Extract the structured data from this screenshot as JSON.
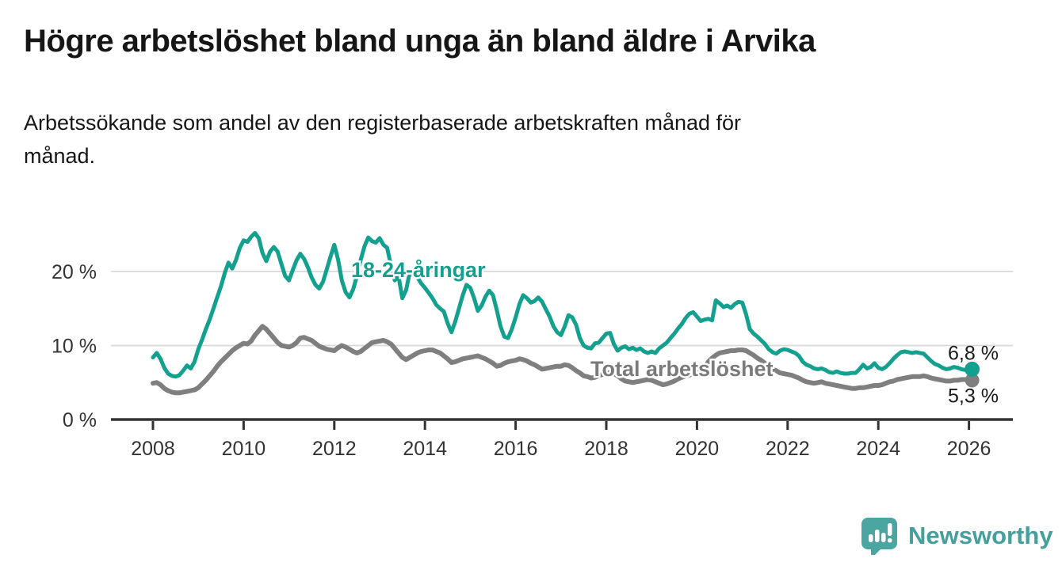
{
  "header": {
    "title": "Högre arbetslöshet bland unga än bland äldre i Arvika",
    "subtitle_line1": "Arbetssökande som andel av den registerbaserade arbetskraften månad för",
    "subtitle_line2": "månad."
  },
  "footer": {
    "brand": "Newsworthy"
  },
  "colors": {
    "accent_teal": "#13a08f",
    "logo_teal": "#4ba5a1",
    "series_gray": "#7f7f7f",
    "grid_gray": "#d9d9d9",
    "axis_dark": "#333333",
    "text_dark": "#161616"
  },
  "chart_data": {
    "type": "line",
    "title": "Högre arbetslöshet bland unga än bland äldre i Arvika",
    "subtitle": "Arbetssökande som andel av den registerbaserade arbetskraften månad för månad.",
    "x_start_year": 2008,
    "points_per_year": 12,
    "x_axis": {
      "tick_values": [
        2008,
        2010,
        2012,
        2014,
        2016,
        2018,
        2020,
        2022,
        2024,
        2026
      ],
      "tick_labels": [
        "2008",
        "2010",
        "2012",
        "2014",
        "2016",
        "2018",
        "2020",
        "2022",
        "2024",
        "2026"
      ]
    },
    "y_axis": {
      "tick_values": [
        0,
        10,
        20
      ],
      "tick_labels": [
        "0 %",
        "10 %",
        "20 %"
      ],
      "min": 0,
      "max": 27,
      "grid": true
    },
    "legend_position": "inline-labels",
    "series": [
      {
        "name": "18-24-åringar",
        "color": "#13a08f",
        "end_label": "6,8 %",
        "end_value": 6.8,
        "values": [
          8.4,
          9.0,
          8.2,
          7.0,
          6.2,
          5.9,
          5.8,
          6.0,
          6.6,
          7.3,
          6.9,
          7.8,
          9.5,
          10.8,
          12.2,
          13.5,
          15.0,
          16.5,
          18.0,
          19.8,
          21.2,
          20.4,
          21.6,
          23.2,
          24.2,
          24.0,
          24.7,
          25.2,
          24.5,
          22.5,
          21.4,
          22.7,
          23.3,
          22.7,
          21.0,
          19.4,
          18.8,
          20.2,
          21.5,
          22.4,
          21.7,
          20.6,
          19.2,
          18.2,
          17.7,
          18.6,
          20.3,
          22.0,
          23.6,
          21.6,
          18.8,
          17.2,
          16.5,
          17.6,
          19.4,
          21.6,
          23.4,
          24.6,
          24.1,
          23.9,
          24.5,
          23.6,
          23.2,
          20.8,
          18.8,
          19.4,
          16.4,
          17.5,
          19.9,
          19.6,
          19.2,
          18.4,
          17.8,
          17.1,
          16.4,
          15.5,
          15.0,
          14.6,
          13.0,
          11.8,
          13.2,
          15.0,
          16.8,
          18.2,
          17.8,
          16.4,
          14.7,
          15.4,
          16.6,
          17.4,
          16.8,
          14.8,
          12.6,
          11.2,
          11.0,
          12.2,
          13.8,
          15.6,
          16.8,
          16.4,
          15.8,
          16.0,
          16.5,
          15.9,
          14.9,
          13.9,
          12.6,
          11.8,
          11.4,
          12.6,
          14.1,
          13.8,
          12.8,
          11.0,
          10.0,
          9.7,
          9.6,
          10.3,
          10.4,
          11.0,
          11.6,
          11.7,
          10.2,
          9.3,
          9.7,
          9.9,
          9.5,
          9.7,
          9.4,
          9.6,
          9.2,
          9.0,
          9.2,
          9.0,
          9.6,
          10.0,
          10.4,
          11.0,
          11.6,
          12.3,
          12.9,
          13.7,
          14.3,
          14.5,
          13.9,
          13.3,
          13.5,
          13.6,
          13.4,
          16.1,
          15.7,
          15.2,
          15.4,
          15.1,
          15.6,
          15.9,
          15.8,
          14.2,
          12.2,
          11.6,
          11.2,
          10.7,
          10.2,
          9.5,
          9.1,
          8.9,
          9.3,
          9.5,
          9.4,
          9.2,
          9.0,
          8.6,
          7.8,
          7.4,
          7.2,
          6.9,
          6.8,
          6.9,
          6.7,
          6.4,
          6.3,
          6.5,
          6.3,
          6.2,
          6.2,
          6.3,
          6.3,
          6.8,
          7.4,
          6.9,
          7.1,
          7.6,
          7.0,
          6.8,
          7.1,
          7.6,
          8.2,
          8.7,
          9.1,
          9.2,
          9.1,
          9.0,
          9.1,
          9.0,
          8.9,
          8.4,
          7.9,
          7.5,
          7.3,
          7.0,
          6.8,
          6.9,
          7.1,
          7.0,
          6.8,
          6.7,
          6.8
        ]
      },
      {
        "name": "Total arbetslöshet",
        "color": "#7f7f7f",
        "end_label": "5,3 %",
        "end_value": 5.3,
        "values": [
          4.9,
          5.0,
          4.7,
          4.2,
          3.9,
          3.7,
          3.6,
          3.6,
          3.7,
          3.8,
          3.9,
          4.0,
          4.3,
          4.8,
          5.3,
          5.9,
          6.5,
          7.2,
          7.8,
          8.3,
          8.8,
          9.3,
          9.7,
          10.0,
          10.3,
          10.2,
          10.6,
          11.4,
          12.0,
          12.6,
          12.2,
          11.6,
          11.0,
          10.4,
          10.0,
          9.9,
          9.8,
          10.0,
          10.4,
          11.0,
          11.1,
          10.9,
          10.7,
          10.3,
          9.9,
          9.7,
          9.5,
          9.4,
          9.3,
          9.7,
          10.0,
          9.8,
          9.5,
          9.2,
          9.0,
          9.2,
          9.6,
          10.0,
          10.4,
          10.5,
          10.6,
          10.7,
          10.5,
          10.2,
          9.6,
          9.0,
          8.4,
          8.1,
          8.4,
          8.7,
          9.0,
          9.2,
          9.3,
          9.4,
          9.4,
          9.2,
          9.0,
          8.6,
          8.2,
          7.7,
          7.8,
          8.0,
          8.2,
          8.3,
          8.4,
          8.5,
          8.6,
          8.4,
          8.2,
          7.9,
          7.6,
          7.2,
          7.3,
          7.6,
          7.8,
          7.9,
          8.0,
          8.2,
          8.1,
          7.9,
          7.6,
          7.4,
          7.1,
          6.8,
          6.9,
          7.0,
          7.1,
          7.2,
          7.2,
          7.4,
          7.3,
          7.0,
          6.6,
          6.3,
          5.9,
          5.8,
          5.6,
          5.7,
          5.9,
          6.1,
          6.2,
          6.4,
          6.2,
          5.9,
          5.5,
          5.2,
          5.1,
          5.0,
          5.1,
          5.2,
          5.3,
          5.4,
          5.3,
          5.1,
          4.9,
          4.7,
          4.8,
          5.0,
          5.2,
          5.5,
          5.7,
          5.9,
          6.0,
          6.2,
          6.4,
          6.6,
          7.0,
          7.8,
          8.3,
          8.7,
          9.0,
          9.1,
          9.2,
          9.3,
          9.3,
          9.4,
          9.4,
          9.3,
          9.0,
          8.7,
          8.3,
          8.0,
          7.6,
          7.2,
          6.8,
          6.6,
          6.3,
          6.2,
          6.1,
          6.0,
          5.8,
          5.6,
          5.3,
          5.1,
          5.0,
          4.9,
          5.0,
          5.1,
          4.9,
          4.8,
          4.7,
          4.6,
          4.5,
          4.4,
          4.3,
          4.2,
          4.2,
          4.3,
          4.3,
          4.4,
          4.5,
          4.6,
          4.6,
          4.7,
          4.9,
          5.1,
          5.2,
          5.4,
          5.5,
          5.6,
          5.7,
          5.8,
          5.8,
          5.8,
          5.9,
          5.8,
          5.6,
          5.5,
          5.4,
          5.3,
          5.2,
          5.2,
          5.3,
          5.3,
          5.4,
          5.4,
          5.3
        ]
      }
    ]
  }
}
